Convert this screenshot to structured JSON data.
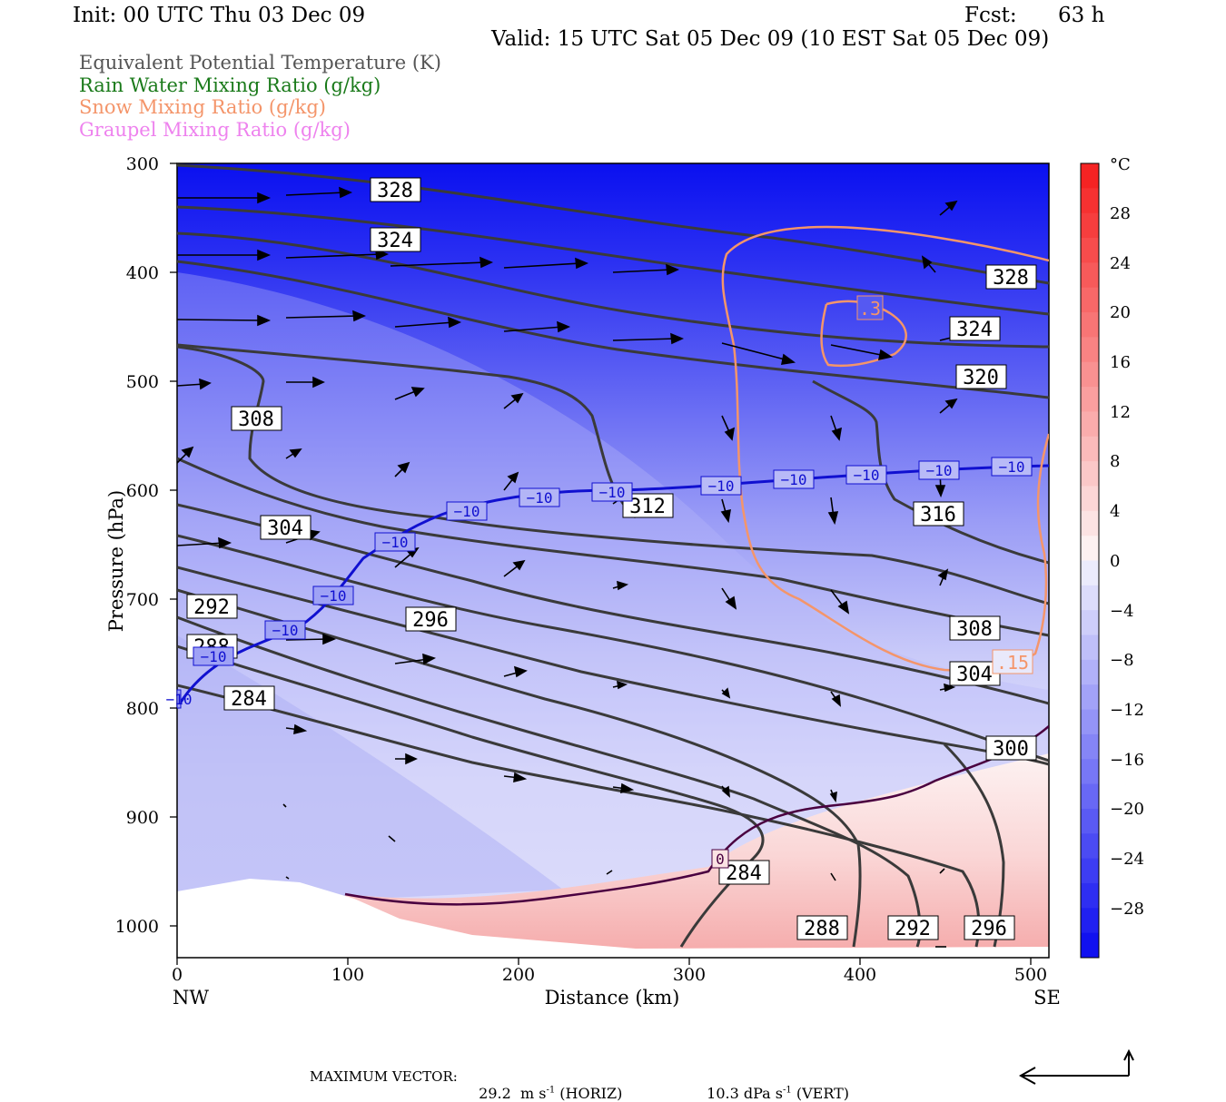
{
  "header": {
    "init": "Init: 00 UTC Thu 03 Dec 09",
    "fcst_label": "Fcst:",
    "fcst_value": "63 h",
    "valid": "Valid: 15 UTC Sat 05 Dec 09 (10 EST Sat 05 Dec 09)"
  },
  "legend": [
    {
      "text": "Equivalent Potential Temperature (K)",
      "color": "#555555"
    },
    {
      "text": "Rain Water Mixing Ratio (g/kg)",
      "color": "#1a7a1a"
    },
    {
      "text": "Snow Mixing Ratio (g/kg)",
      "color": "#f4956a"
    },
    {
      "text": "Graupel Mixing Ratio (g/kg)",
      "color": "#ee82ee"
    }
  ],
  "chart_data": {
    "type": "cross-section",
    "xlabel": "Distance (km)",
    "ylabel": "Pressure (hPa)",
    "xlim": [
      0,
      510
    ],
    "ylim": [
      300,
      1025
    ],
    "x_ticks": [
      "0",
      "100",
      "200",
      "300",
      "400",
      "500"
    ],
    "y_ticks": [
      "300",
      "400",
      "500",
      "600",
      "700",
      "800",
      "900",
      "1000"
    ],
    "x_ends": {
      "left": "NW",
      "right": "SE"
    },
    "colorbar": {
      "unit": "°C",
      "tick_labels": [
        "28",
        "24",
        "20",
        "16",
        "12",
        "8",
        "4",
        "0",
        "−4",
        "−8",
        "−12",
        "−16",
        "−20",
        "−24",
        "−28"
      ],
      "range": [
        -32,
        32
      ]
    },
    "theta_e_labels": [
      "328",
      "324",
      "328",
      "324",
      "320",
      "308",
      "304",
      "312",
      "316",
      "292",
      "296",
      "288",
      "284",
      "308",
      "304",
      "300",
      "284",
      "288",
      "292",
      "296"
    ],
    "isotherm_labels": [
      "−10",
      "−10",
      "−10",
      "−10",
      "−10",
      "−10",
      "−10",
      "−10",
      "−10",
      "−10",
      "−10",
      "−10",
      "−10",
      "0"
    ],
    "snow_labels": [
      ".3",
      ".15"
    ],
    "colors": {
      "isotherm": "#1010d0",
      "theta_e": "#3a3a3a",
      "snow": "#f4956a",
      "zero_isotherm": "#4a0040"
    }
  },
  "footer": {
    "max_label": "MAXIMUM VECTOR:",
    "horiz_value": "29.2",
    "horiz_unit": "m s",
    "horiz_exp": "-1",
    "horiz_tag": "(HORIZ)",
    "vert_value": "10.3",
    "vert_unit": "dPa s",
    "vert_exp": "-1",
    "vert_tag": "(VERT)"
  }
}
